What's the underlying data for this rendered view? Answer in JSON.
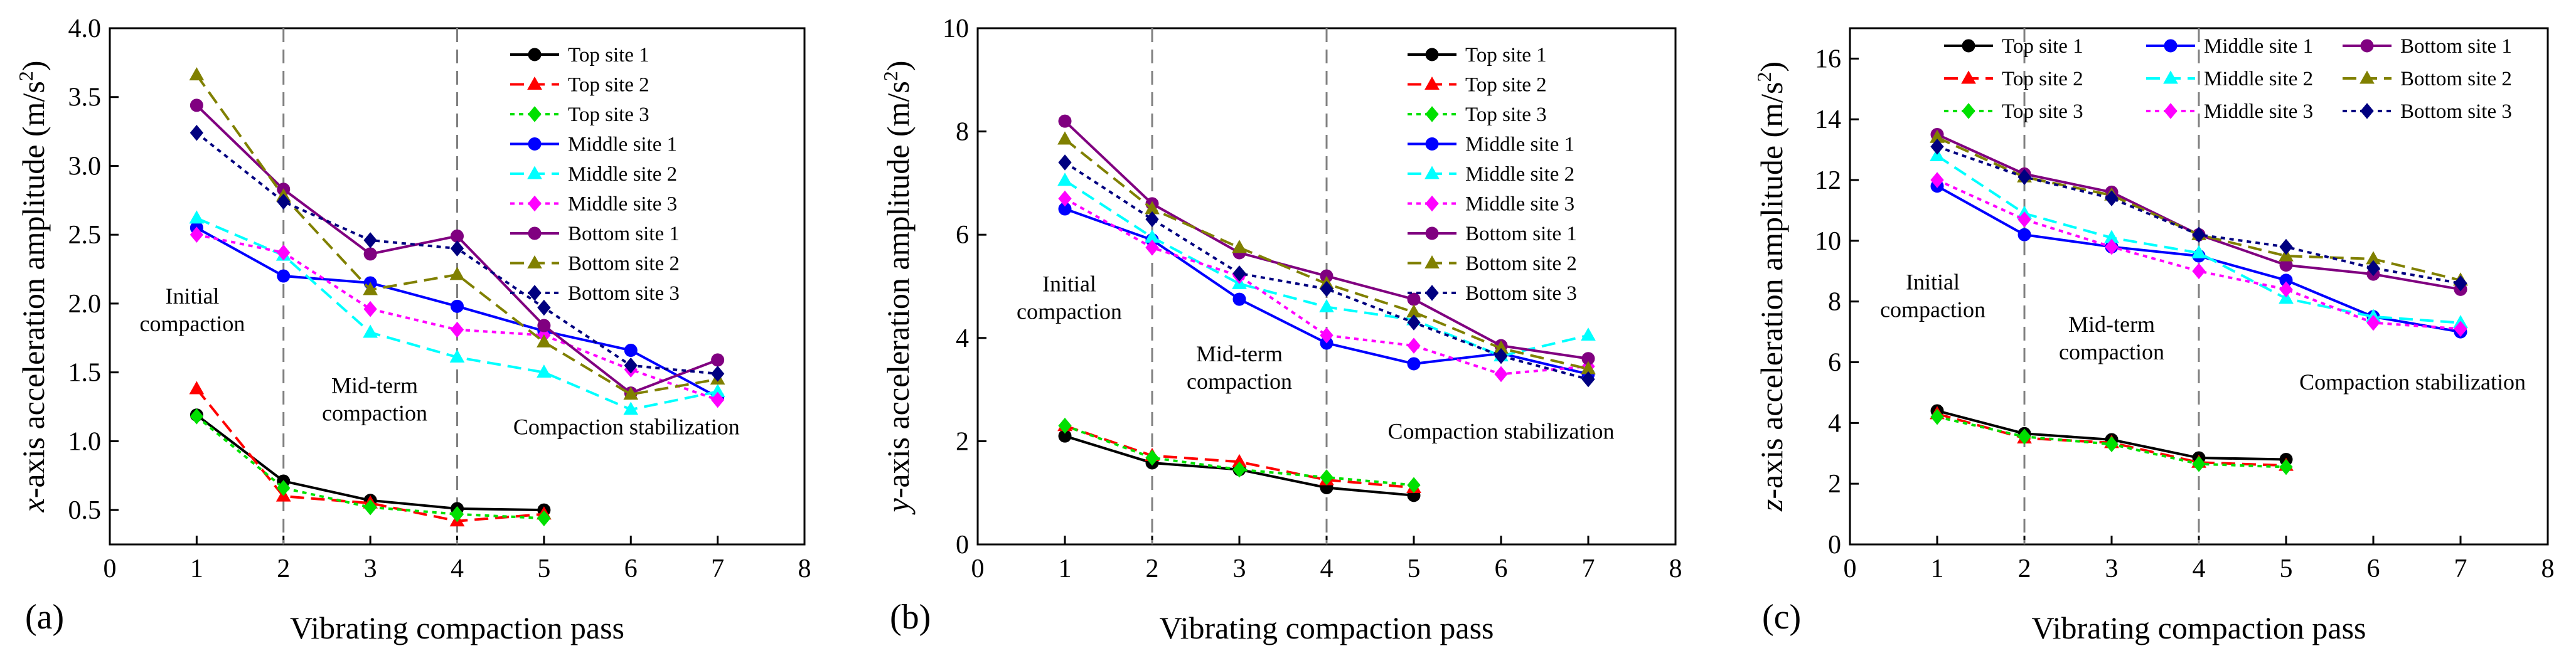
{
  "styles": {
    "Top site 1": {
      "color": "#000000",
      "marker": "circle",
      "dash": "solid"
    },
    "Top site 2": {
      "color": "#ff0000",
      "marker": "triangle",
      "dash": "dashed"
    },
    "Top site 3": {
      "color": "#00e000",
      "marker": "diamond",
      "dash": "dotted"
    },
    "Middle site 1": {
      "color": "#0000ff",
      "marker": "circle",
      "dash": "solid"
    },
    "Middle site 2": {
      "color": "#00ffff",
      "marker": "triangle",
      "dash": "dashed"
    },
    "Middle site 3": {
      "color": "#ff00ff",
      "marker": "diamond",
      "dash": "dotted"
    },
    "Bottom site 1": {
      "color": "#800080",
      "marker": "circle",
      "dash": "solid"
    },
    "Bottom site 2": {
      "color": "#808000",
      "marker": "triangle",
      "dash": "dashed"
    },
    "Bottom site 3": {
      "color": "#000080",
      "marker": "diamond",
      "dash": "dotted"
    }
  },
  "chart_data": [
    {
      "type": "line",
      "panel_label": "(a)",
      "xlabel": "Vibrating compaction pass",
      "ylabel_italic": "x",
      "ylabel_text": "-axis acceleration amplitude (m/s",
      "ylabel_sup": "2",
      "ylabel_close": ")",
      "xlim": [
        0,
        8
      ],
      "ylim": [
        0.25,
        4.0
      ],
      "xticks": [
        0,
        1,
        2,
        3,
        4,
        5,
        6,
        7,
        8
      ],
      "yticks": [
        0.5,
        1.0,
        1.5,
        2.0,
        2.5,
        3.0,
        3.5,
        4.0
      ],
      "ytick_labels": [
        "0.5",
        "1.0",
        "1.5",
        "2.0",
        "2.5",
        "3.0",
        "3.5",
        "4.0"
      ],
      "vlines": [
        2,
        4
      ],
      "legend_position": "top-right",
      "legend_layout": "single-column",
      "annotations": [
        {
          "lines": [
            "Initial",
            "compaction"
          ],
          "x": 0.95,
          "y": 2.0,
          "anchor": "middle"
        },
        {
          "lines": [
            "Mid-term",
            "compaction"
          ],
          "x": 3.05,
          "y": 1.35,
          "anchor": "middle"
        },
        {
          "lines": [
            "Compaction stabilization"
          ],
          "x": 5.95,
          "y": 1.05,
          "anchor": "middle"
        }
      ],
      "series": [
        {
          "name": "Top site 1",
          "x": [
            1,
            2,
            3,
            4,
            5
          ],
          "y": [
            1.19,
            0.71,
            0.57,
            0.51,
            0.5
          ]
        },
        {
          "name": "Top site 2",
          "x": [
            1,
            2,
            3,
            4,
            5
          ],
          "y": [
            1.38,
            0.6,
            0.55,
            0.42,
            0.47
          ]
        },
        {
          "name": "Top site 3",
          "x": [
            1,
            2,
            3,
            4,
            5
          ],
          "y": [
            1.18,
            0.66,
            0.52,
            0.47,
            0.44
          ]
        },
        {
          "name": "Middle site 1",
          "x": [
            1,
            2,
            3,
            4,
            5,
            6,
            7
          ],
          "y": [
            2.55,
            2.2,
            2.15,
            1.98,
            1.8,
            1.66,
            1.32
          ]
        },
        {
          "name": "Middle site 2",
          "x": [
            1,
            2,
            3,
            4,
            5,
            6,
            7
          ],
          "y": [
            2.62,
            2.35,
            1.79,
            1.61,
            1.5,
            1.23,
            1.36
          ]
        },
        {
          "name": "Middle site 3",
          "x": [
            1,
            2,
            3,
            4,
            5,
            6,
            7
          ],
          "y": [
            2.5,
            2.37,
            1.96,
            1.81,
            1.77,
            1.52,
            1.3
          ]
        },
        {
          "name": "Bottom site 1",
          "x": [
            1,
            2,
            3,
            4,
            5,
            6,
            7
          ],
          "y": [
            3.44,
            2.83,
            2.36,
            2.49,
            1.84,
            1.35,
            1.59
          ]
        },
        {
          "name": "Bottom site 2",
          "x": [
            1,
            2,
            3,
            4,
            5,
            6,
            7
          ],
          "y": [
            3.66,
            2.78,
            2.1,
            2.21,
            1.72,
            1.34,
            1.45
          ]
        },
        {
          "name": "Bottom site 3",
          "x": [
            1,
            2,
            3,
            4,
            5,
            6,
            7
          ],
          "y": [
            3.24,
            2.74,
            2.46,
            2.4,
            1.97,
            1.55,
            1.49
          ]
        }
      ]
    },
    {
      "type": "line",
      "panel_label": "(b)",
      "xlabel": "Vibrating compaction pass",
      "ylabel_italic": "y",
      "ylabel_text": "-axis acceleration amplitude (m/s",
      "ylabel_sup": "2",
      "ylabel_close": ")",
      "xlim": [
        0,
        8
      ],
      "ylim": [
        0,
        10
      ],
      "xticks": [
        0,
        1,
        2,
        3,
        4,
        5,
        6,
        7,
        8
      ],
      "yticks": [
        0,
        2,
        4,
        6,
        8,
        10
      ],
      "ytick_labels": [
        "0",
        "2",
        "4",
        "6",
        "8",
        "10"
      ],
      "vlines": [
        2,
        4
      ],
      "legend_position": "top-right",
      "legend_layout": "single-column",
      "annotations": [
        {
          "lines": [
            "Initial",
            "compaction"
          ],
          "x": 1.05,
          "y": 4.9,
          "anchor": "middle"
        },
        {
          "lines": [
            "Mid-term",
            "compaction"
          ],
          "x": 3.0,
          "y": 3.55,
          "anchor": "middle"
        },
        {
          "lines": [
            "Compaction stabilization"
          ],
          "x": 6.0,
          "y": 2.05,
          "anchor": "middle"
        }
      ],
      "series": [
        {
          "name": "Top site 1",
          "x": [
            1,
            2,
            3,
            4,
            5
          ],
          "y": [
            2.1,
            1.58,
            1.45,
            1.1,
            0.95
          ]
        },
        {
          "name": "Top site 2",
          "x": [
            1,
            2,
            3,
            4,
            5
          ],
          "y": [
            2.3,
            1.72,
            1.6,
            1.25,
            1.1
          ]
        },
        {
          "name": "Top site 3",
          "x": [
            1,
            2,
            3,
            4,
            5
          ],
          "y": [
            2.3,
            1.68,
            1.45,
            1.3,
            1.15
          ]
        },
        {
          "name": "Middle site 1",
          "x": [
            1,
            2,
            3,
            4,
            5,
            6,
            7
          ],
          "y": [
            6.5,
            5.9,
            4.75,
            3.9,
            3.5,
            3.7,
            3.3
          ]
        },
        {
          "name": "Middle site 2",
          "x": [
            1,
            2,
            3,
            4,
            5,
            6,
            7
          ],
          "y": [
            7.05,
            5.95,
            5.05,
            4.6,
            4.35,
            3.65,
            4.05
          ]
        },
        {
          "name": "Middle site 3",
          "x": [
            1,
            2,
            3,
            4,
            5,
            6,
            7
          ],
          "y": [
            6.7,
            5.75,
            5.2,
            4.05,
            3.85,
            3.3,
            3.45
          ]
        },
        {
          "name": "Bottom site 1",
          "x": [
            1,
            2,
            3,
            4,
            5,
            6,
            7
          ],
          "y": [
            8.2,
            6.6,
            5.65,
            5.2,
            4.75,
            3.85,
            3.6
          ]
        },
        {
          "name": "Bottom site 2",
          "x": [
            1,
            2,
            3,
            4,
            5,
            6,
            7
          ],
          "y": [
            7.85,
            6.5,
            5.75,
            5.05,
            4.5,
            3.8,
            3.4
          ]
        },
        {
          "name": "Bottom site 3",
          "x": [
            1,
            2,
            3,
            4,
            5,
            6,
            7
          ],
          "y": [
            7.4,
            6.3,
            5.25,
            4.95,
            4.3,
            3.65,
            3.2
          ]
        }
      ]
    },
    {
      "type": "line",
      "panel_label": "(c)",
      "xlabel": "Vibrating compaction pass",
      "ylabel_italic": "z",
      "ylabel_text": "-axis acceleration amplitude (m/s",
      "ylabel_sup": "2",
      "ylabel_close": ")",
      "xlim": [
        0,
        8
      ],
      "ylim": [
        0,
        17
      ],
      "xticks": [
        0,
        1,
        2,
        3,
        4,
        5,
        6,
        7,
        8
      ],
      "yticks": [
        0,
        2,
        4,
        6,
        8,
        10,
        12,
        14,
        16
      ],
      "ytick_labels": [
        "0",
        "2",
        "4",
        "6",
        "8",
        "10",
        "12",
        "14",
        "16"
      ],
      "vlines": [
        2,
        4
      ],
      "legend_position": "top",
      "legend_layout": "three-columns",
      "annotations": [
        {
          "lines": [
            "Initial",
            "compaction"
          ],
          "x": 0.95,
          "y": 8.4,
          "anchor": "middle"
        },
        {
          "lines": [
            "Mid-term",
            "compaction"
          ],
          "x": 3.0,
          "y": 7.0,
          "anchor": "middle"
        },
        {
          "lines": [
            "Compaction stabilization"
          ],
          "x": 6.45,
          "y": 5.1,
          "anchor": "middle"
        }
      ],
      "series": [
        {
          "name": "Top site 1",
          "x": [
            1,
            2,
            3,
            4,
            5
          ],
          "y": [
            4.4,
            3.65,
            3.45,
            2.85,
            2.8
          ]
        },
        {
          "name": "Top site 2",
          "x": [
            1,
            2,
            3,
            4,
            5
          ],
          "y": [
            4.3,
            3.5,
            3.35,
            2.7,
            2.6
          ]
        },
        {
          "name": "Top site 3",
          "x": [
            1,
            2,
            3,
            4,
            5
          ],
          "y": [
            4.2,
            3.55,
            3.3,
            2.65,
            2.55
          ]
        },
        {
          "name": "Middle site 1",
          "x": [
            1,
            2,
            3,
            4,
            5,
            6,
            7
          ],
          "y": [
            11.8,
            10.2,
            9.8,
            9.5,
            8.7,
            7.5,
            7.0
          ]
        },
        {
          "name": "Middle site 2",
          "x": [
            1,
            2,
            3,
            4,
            5,
            6,
            7
          ],
          "y": [
            12.8,
            10.9,
            10.1,
            9.6,
            8.1,
            7.5,
            7.3
          ]
        },
        {
          "name": "Middle site 3",
          "x": [
            1,
            2,
            3,
            4,
            5,
            6,
            7
          ],
          "y": [
            12.0,
            10.7,
            9.8,
            9.0,
            8.4,
            7.3,
            7.1
          ]
        },
        {
          "name": "Bottom site 1",
          "x": [
            1,
            2,
            3,
            4,
            5,
            6,
            7
          ],
          "y": [
            13.5,
            12.2,
            11.6,
            10.2,
            9.2,
            8.9,
            8.4
          ]
        },
        {
          "name": "Bottom site 2",
          "x": [
            1,
            2,
            3,
            4,
            5,
            6,
            7
          ],
          "y": [
            13.4,
            12.1,
            11.5,
            10.2,
            9.5,
            9.4,
            8.7
          ]
        },
        {
          "name": "Bottom site 3",
          "x": [
            1,
            2,
            3,
            4,
            5,
            6,
            7
          ],
          "y": [
            13.1,
            12.1,
            11.4,
            10.2,
            9.8,
            9.1,
            8.6
          ]
        }
      ]
    }
  ]
}
